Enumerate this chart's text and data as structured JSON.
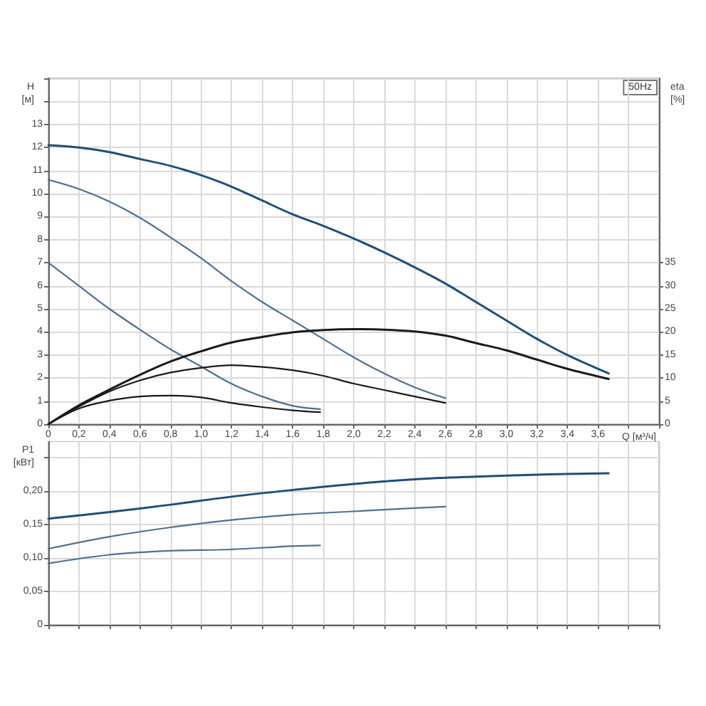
{
  "chart_data": [
    {
      "type": "line",
      "xlabel": "Q [м³/ч]",
      "ylabel": "H [м]",
      "y2label": "eta [%]",
      "annotations": [
        "50Hz"
      ],
      "xlim": [
        0,
        4
      ],
      "xticks": [
        0,
        {
          "value": 0.2,
          "label": "0,2"
        },
        {
          "value": 0.4,
          "label": "0,4"
        },
        {
          "value": 0.6,
          "label": "0,6"
        },
        {
          "value": 0.8,
          "label": "0,8"
        },
        {
          "value": 1,
          "label": "1,0"
        },
        {
          "value": 1.2,
          "label": "1,2"
        },
        {
          "value": 1.4,
          "label": "1,4"
        },
        {
          "value": 1.6,
          "label": "1,6"
        },
        {
          "value": 1.8,
          "label": "1,8"
        },
        {
          "value": 2,
          "label": "2,0"
        },
        {
          "value": 2.2,
          "label": "2,2"
        },
        {
          "value": 2.4,
          "label": "2,4"
        },
        {
          "value": 2.6,
          "label": "2,6"
        },
        {
          "value": 2.8,
          "label": "2,8"
        },
        {
          "value": 3,
          "label": "3,0"
        },
        {
          "value": 3.2,
          "label": "3,2"
        },
        {
          "value": 3.4,
          "label": "3,4"
        },
        {
          "value": 3.6,
          "label": "3,6"
        },
        {
          "value": 3.8,
          "label": null
        },
        {
          "value": 4,
          "label": null
        }
      ],
      "ylim": [
        0,
        15
      ],
      "yticks": [
        0,
        1,
        2,
        3,
        4,
        5,
        6,
        7,
        8,
        9,
        10,
        11,
        12,
        13,
        {
          "value": 14,
          "label": null
        },
        {
          "value": 15,
          "label": null
        }
      ],
      "y2lim": [
        0,
        75
      ],
      "y2ticks": [
        0,
        5,
        10,
        15,
        20,
        25,
        30,
        35
      ],
      "grid": true,
      "marker": "none",
      "series": [
        {
          "color": "#1f4e79",
          "x": [
            0,
            0.2,
            0.4,
            0.6,
            0.8,
            1.0,
            1.2,
            1.4,
            1.6,
            1.8,
            2.0,
            2.2,
            2.4,
            2.6,
            2.8,
            3.0,
            3.2,
            3.4,
            3.67
          ],
          "values": [
            12.1,
            12.0,
            11.8,
            11.5,
            11.2,
            10.8,
            10.3,
            9.7,
            9.1,
            8.6,
            8.05,
            7.45,
            6.8,
            6.1,
            5.3,
            4.5,
            3.7,
            3.0,
            2.2
          ]
        },
        {
          "color": "#4d7092",
          "x": [
            0,
            0.2,
            0.4,
            0.6,
            0.8,
            1.0,
            1.2,
            1.4,
            1.6,
            1.8,
            2.0,
            2.2,
            2.4,
            2.6
          ],
          "values": [
            10.6,
            10.2,
            9.65,
            8.95,
            8.1,
            7.2,
            6.2,
            5.3,
            4.5,
            3.7,
            2.9,
            2.2,
            1.6,
            1.13
          ]
        },
        {
          "color": "#4d7092",
          "x": [
            0,
            0.2,
            0.4,
            0.6,
            0.8,
            1.0,
            1.2,
            1.4,
            1.6,
            1.78
          ],
          "values": [
            7.0,
            6.0,
            5.0,
            4.1,
            3.25,
            2.5,
            1.75,
            1.2,
            0.8,
            0.65
          ]
        },
        {
          "color": "#1a1a1a",
          "axis": "y2",
          "x": [
            0,
            0.2,
            0.4,
            0.6,
            0.8,
            1.0,
            1.2,
            1.4,
            1.6,
            1.8,
            2.0,
            2.2,
            2.4,
            2.6,
            2.8,
            3.0,
            3.2,
            3.4,
            3.67
          ],
          "values": [
            0,
            4.1,
            7.5,
            10.7,
            13.6,
            15.8,
            17.7,
            18.9,
            19.9,
            20.4,
            20.6,
            20.5,
            20.1,
            19.2,
            17.6,
            16.0,
            14.0,
            12.0,
            9.8
          ]
        },
        {
          "color": "#1a1a1a",
          "axis": "y2",
          "x": [
            0,
            0.2,
            0.4,
            0.6,
            0.8,
            1.0,
            1.2,
            1.4,
            1.6,
            1.8,
            2.0,
            2.2,
            2.4,
            2.6
          ],
          "values": [
            0,
            3.8,
            7.1,
            9.5,
            11.2,
            12.2,
            12.8,
            12.4,
            11.7,
            10.5,
            8.8,
            7.4,
            6.0,
            4.6
          ]
        },
        {
          "color": "#1a1a1a",
          "axis": "y2",
          "x": [
            0,
            0.2,
            0.4,
            0.6,
            0.8,
            1.0,
            1.2,
            1.4,
            1.6,
            1.78
          ],
          "values": [
            0,
            3.4,
            5.1,
            6.0,
            6.2,
            5.8,
            4.6,
            3.7,
            3.0,
            2.6
          ]
        }
      ]
    },
    {
      "type": "line",
      "ylabel": "P1 [кВт]",
      "tick_labels": "y",
      "xlim": [
        0,
        4
      ],
      "xticks": [
        0,
        0.2,
        0.4,
        0.6,
        0.8,
        1,
        1.2,
        1.4,
        1.6,
        1.8,
        2,
        2.2,
        2.4,
        2.6,
        2.8,
        3,
        3.2,
        3.4,
        3.6,
        3.8,
        4
      ],
      "ylim": [
        0,
        0.275
      ],
      "yticks": [
        0,
        {
          "value": 0.05,
          "label": "0,05"
        },
        {
          "value": 0.1,
          "label": "0,10"
        },
        {
          "value": 0.15,
          "label": "0,15"
        },
        {
          "value": 0.2,
          "label": "0,20"
        },
        {
          "value": 0.25,
          "label": null
        }
      ],
      "grid": true,
      "marker": "none",
      "series": [
        {
          "color": "#1f4e79",
          "x": [
            0,
            0.4,
            0.8,
            1.2,
            1.6,
            2.0,
            2.4,
            2.8,
            3.2,
            3.67
          ],
          "values": [
            0.159,
            0.169,
            0.18,
            0.192,
            0.202,
            0.211,
            0.218,
            0.222,
            0.225,
            0.227
          ]
        },
        {
          "color": "#4d7092",
          "x": [
            0,
            0.4,
            0.8,
            1.2,
            1.6,
            2.0,
            2.4,
            2.6
          ],
          "values": [
            0.114,
            0.132,
            0.146,
            0.157,
            0.165,
            0.17,
            0.175,
            0.177
          ]
        },
        {
          "color": "#4d7092",
          "x": [
            0,
            0.4,
            0.8,
            1.2,
            1.6,
            1.78
          ],
          "values": [
            0.092,
            0.105,
            0.111,
            0.113,
            0.118,
            0.119
          ]
        }
      ]
    }
  ]
}
